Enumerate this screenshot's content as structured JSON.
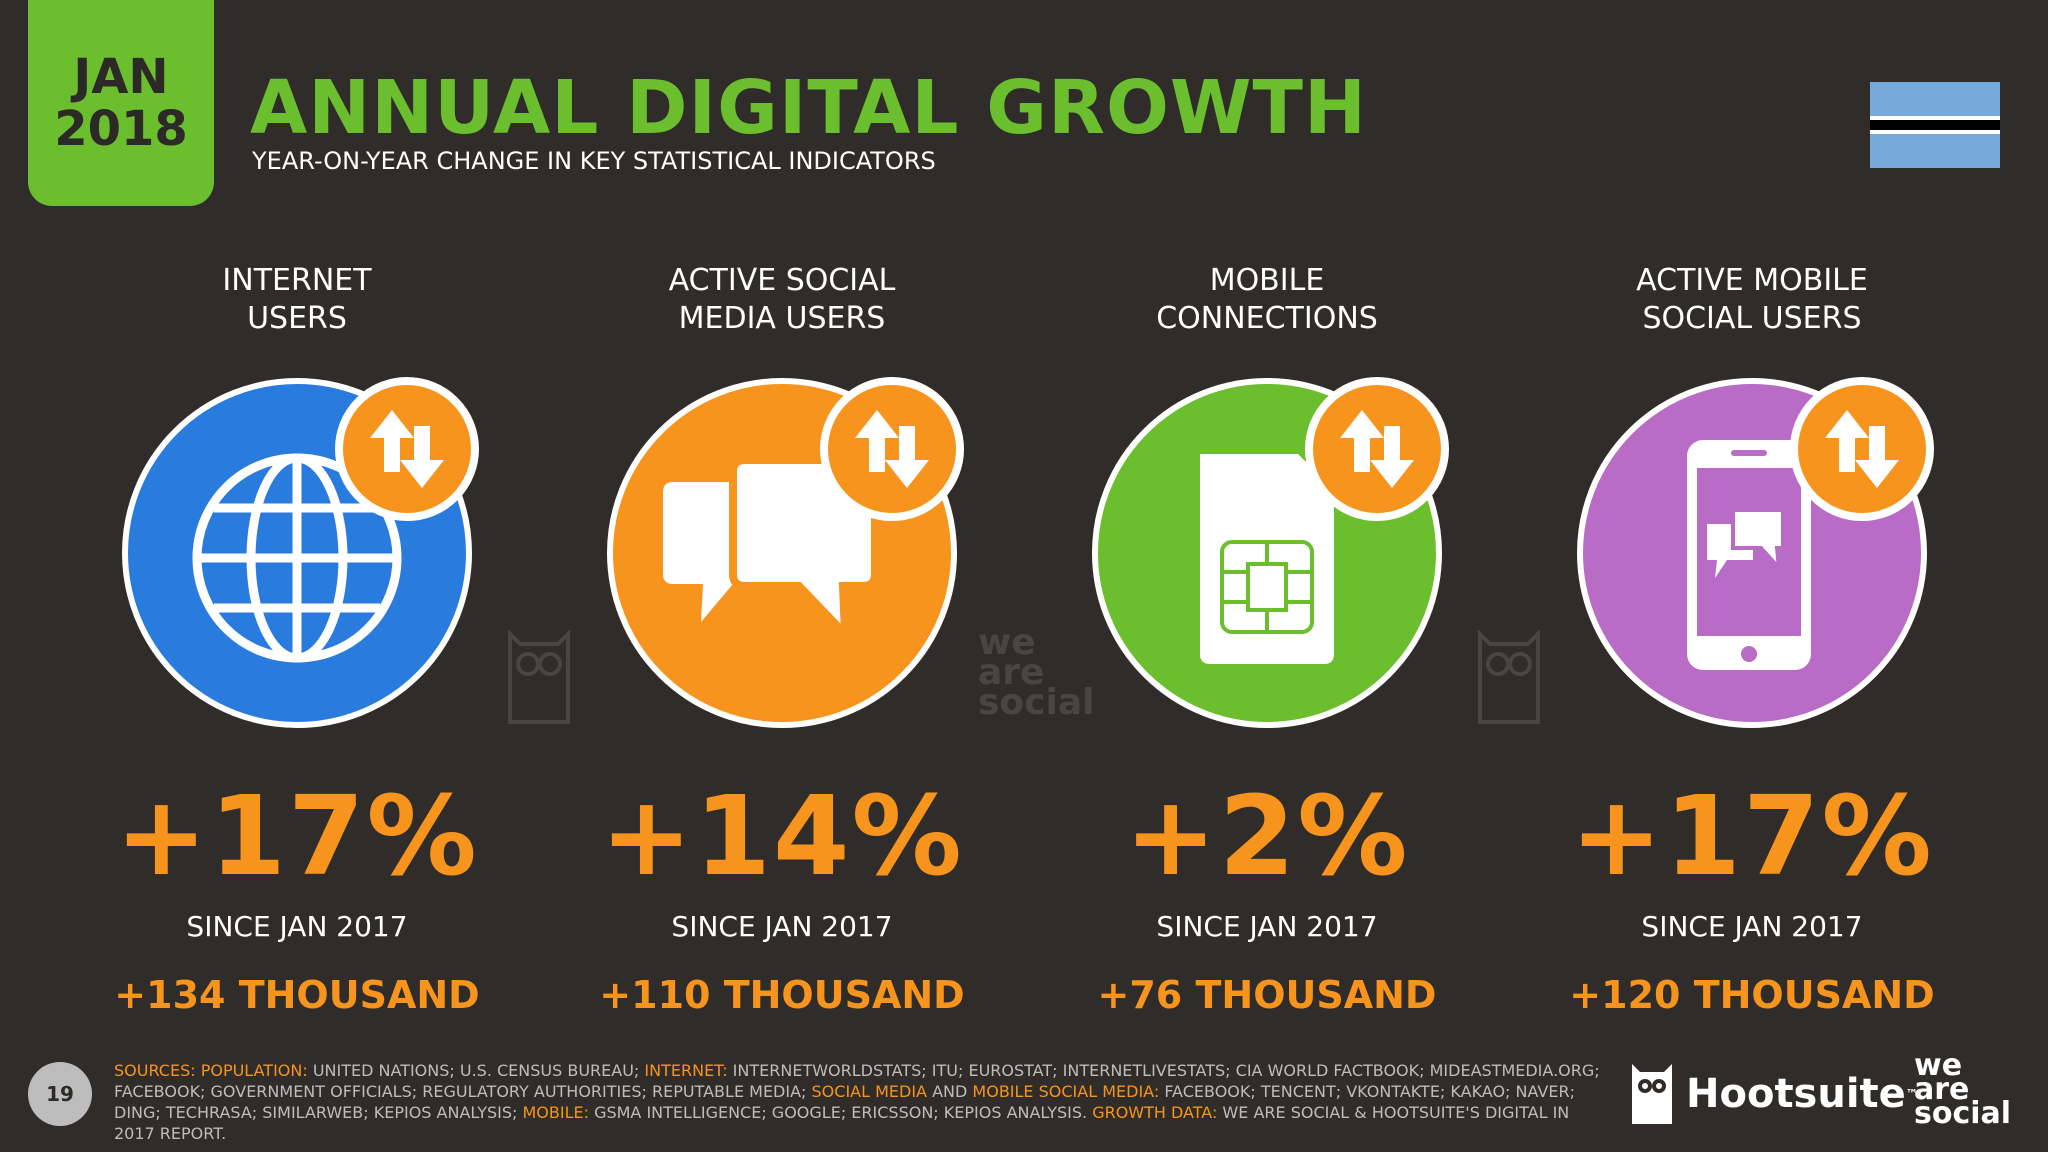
{
  "badge": {
    "line1": "JAN",
    "line2": "2018"
  },
  "header": {
    "title": "ANNUAL DIGITAL GROWTH",
    "subtitle": "YEAR-ON-YEAR CHANGE IN KEY STATISTICAL INDICATORS"
  },
  "flag": {
    "colors": {
      "blue": "#75AADB",
      "black": "#000000",
      "white": "#FFFFFF"
    }
  },
  "metrics": [
    {
      "label_line1": "INTERNET",
      "label_line2": "USERS",
      "percent": "+17%",
      "since": "SINCE JAN 2017",
      "absolute": "+134 THOUSAND",
      "icon": "globe-icon",
      "color": "#2A7BDE"
    },
    {
      "label_line1": "ACTIVE SOCIAL",
      "label_line2": "MEDIA USERS",
      "percent": "+14%",
      "since": "SINCE JAN 2017",
      "absolute": "+110 THOUSAND",
      "icon": "chat-bubbles-icon",
      "color": "#F7941D"
    },
    {
      "label_line1": "MOBILE",
      "label_line2": "CONNECTIONS",
      "percent": "+2%",
      "since": "SINCE JAN 2017",
      "absolute": "+76 THOUSAND",
      "icon": "sim-card-icon",
      "color": "#6BBE2E"
    },
    {
      "label_line1": "ACTIVE MOBILE",
      "label_line2": "SOCIAL USERS",
      "percent": "+17%",
      "since": "SINCE JAN 2017",
      "absolute": "+120 THOUSAND",
      "icon": "mobile-chat-icon",
      "color": "#B86CC5"
    }
  ],
  "watermarks": {
    "we_are_social_line1": "we",
    "we_are_social_line2": "are",
    "we_are_social_line3": "social"
  },
  "footer": {
    "page_number": "19",
    "sources": [
      {
        "text": "SOURCES: ",
        "hl": true
      },
      {
        "text": "POPULATION: ",
        "hl": true
      },
      {
        "text": "UNITED NATIONS; U.S. CENSUS BUREAU; ",
        "hl": false
      },
      {
        "text": "INTERNET: ",
        "hl": true
      },
      {
        "text": "INTERNETWORLDSTATS; ITU; EUROSTAT; INTERNETLIVESTATS; CIA WORLD FACTBOOK; MIDEASTMEDIA.ORG; FACEBOOK; GOVERNMENT OFFICIALS; REGULATORY AUTHORITIES; REPUTABLE MEDIA; ",
        "hl": false
      },
      {
        "text": "SOCIAL MEDIA ",
        "hl": true
      },
      {
        "text": "AND ",
        "hl": false
      },
      {
        "text": "MOBILE SOCIAL MEDIA: ",
        "hl": true
      },
      {
        "text": "FACEBOOK; TENCENT; VKONTAKTE; KAKAO; NAVER; DING; TECHRASA; SIMILARWEB; KEPIOS ANALYSIS; ",
        "hl": false
      },
      {
        "text": "MOBILE: ",
        "hl": true
      },
      {
        "text": "GSMA INTELLIGENCE; GOOGLE; ERICSSON; KEPIOS ANALYSIS. ",
        "hl": false
      },
      {
        "text": "GROWTH DATA: ",
        "hl": true
      },
      {
        "text": "WE ARE SOCIAL & HOOTSUITE'S DIGITAL IN 2017 REPORT.",
        "hl": false
      }
    ],
    "hootsuite": "Hootsuite",
    "tm": "™",
    "was_line1": "we",
    "was_line2": "are",
    "was_line3": "social"
  }
}
